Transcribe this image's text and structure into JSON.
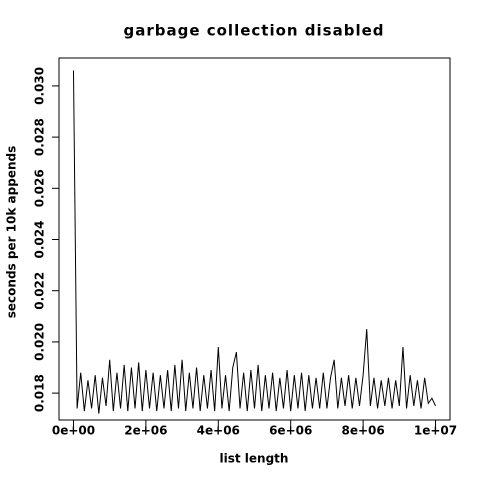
{
  "chart_data": {
    "type": "line",
    "title": "garbage collection disabled",
    "xlabel": "list length",
    "ylabel": "seconds per 10k appends",
    "color": "#000000",
    "xlim": [
      -400000,
      10400000
    ],
    "ylim": [
      0.01695,
      0.03109
    ],
    "xticks": [
      {
        "value": 0,
        "label": "0e+00"
      },
      {
        "value": 2000000,
        "label": "2e+06"
      },
      {
        "value": 4000000,
        "label": "4e+06"
      },
      {
        "value": 6000000,
        "label": "6e+06"
      },
      {
        "value": 8000000,
        "label": "8e+06"
      },
      {
        "value": 10000000,
        "label": "1e+07"
      }
    ],
    "yticks": [
      0.018,
      {
        "value": 0.02,
        "label": "0.020"
      },
      0.022,
      0.024,
      0.026,
      0.028,
      {
        "value": 0.03,
        "label": "0.030"
      }
    ],
    "x": [
      0,
      100000,
      200000,
      300000,
      400000,
      500000,
      600000,
      700000,
      800000,
      900000,
      1000000,
      1100000,
      1200000,
      1300000,
      1400000,
      1500000,
      1600000,
      1700000,
      1800000,
      1900000,
      2000000,
      2100000,
      2200000,
      2300000,
      2400000,
      2500000,
      2600000,
      2700000,
      2800000,
      2900000,
      3000000,
      3100000,
      3200000,
      3300000,
      3400000,
      3500000,
      3600000,
      3700000,
      3800000,
      3900000,
      4000000,
      4100000,
      4200000,
      4300000,
      4400000,
      4500000,
      4600000,
      4700000,
      4800000,
      4900000,
      5000000,
      5100000,
      5200000,
      5300000,
      5400000,
      5500000,
      5600000,
      5700000,
      5800000,
      5900000,
      6000000,
      6100000,
      6200000,
      6300000,
      6400000,
      6500000,
      6600000,
      6700000,
      6800000,
      6900000,
      7000000,
      7100000,
      7200000,
      7300000,
      7400000,
      7500000,
      7600000,
      7700000,
      7800000,
      7900000,
      8000000,
      8100000,
      8200000,
      8300000,
      8400000,
      8500000,
      8600000,
      8700000,
      8800000,
      8900000,
      9000000,
      9100000,
      9200000,
      9300000,
      9400000,
      9500000,
      9600000,
      9700000,
      9800000,
      9900000,
      10000000
    ],
    "values": [
      0.0306,
      0.0174,
      0.0188,
      0.0173,
      0.0185,
      0.0174,
      0.0187,
      0.0172,
      0.0186,
      0.0175,
      0.0193,
      0.0173,
      0.0188,
      0.0174,
      0.0191,
      0.0173,
      0.019,
      0.0174,
      0.0192,
      0.0173,
      0.0189,
      0.0174,
      0.0188,
      0.0173,
      0.0187,
      0.0174,
      0.0189,
      0.0173,
      0.0191,
      0.0174,
      0.0193,
      0.0173,
      0.0188,
      0.0174,
      0.019,
      0.0173,
      0.0187,
      0.0174,
      0.0189,
      0.0173,
      0.0198,
      0.0174,
      0.0187,
      0.0173,
      0.019,
      0.0196,
      0.0174,
      0.0188,
      0.0173,
      0.0189,
      0.0174,
      0.0191,
      0.0173,
      0.0187,
      0.0174,
      0.0188,
      0.0173,
      0.0186,
      0.0174,
      0.0189,
      0.0173,
      0.0187,
      0.0174,
      0.0188,
      0.0173,
      0.0187,
      0.0174,
      0.0186,
      0.0174,
      0.0188,
      0.0174,
      0.0186,
      0.0193,
      0.0174,
      0.0186,
      0.0175,
      0.0187,
      0.0174,
      0.0186,
      0.0175,
      0.0187,
      0.0205,
      0.0175,
      0.0186,
      0.0174,
      0.0185,
      0.0175,
      0.0186,
      0.0174,
      0.0185,
      0.0175,
      0.0198,
      0.0174,
      0.0187,
      0.0175,
      0.0185,
      0.0174,
      0.0186,
      0.0176,
      0.0178,
      0.0175
    ]
  }
}
